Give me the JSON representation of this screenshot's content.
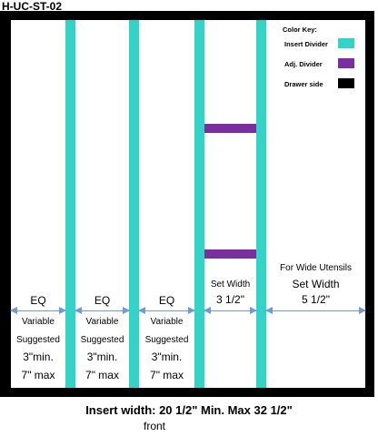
{
  "title": "H-UC-ST-02",
  "colors": {
    "insert_divider": "#33d3c8",
    "adj_divider": "#7a2f9e",
    "drawer_side": "#000000"
  },
  "color_key": {
    "heading": "Color Key:",
    "items": [
      {
        "label": "Insert Divider"
      },
      {
        "label": "Adj. Divider"
      },
      {
        "label": "Drawer side"
      }
    ]
  },
  "compartments": [
    {
      "eq": "EQ",
      "variable": "Variable",
      "suggested": "Suggested",
      "min": "3\"min.",
      "max": "7\" max"
    },
    {
      "eq": "EQ",
      "variable": "Variable",
      "suggested": "Suggested",
      "min": "3\"min.",
      "max": "7\" max"
    },
    {
      "eq": "EQ",
      "variable": "Variable",
      "suggested": "Suggested",
      "min": "3\"min.",
      "max": "7\" max"
    },
    {
      "set_label": "Set Width",
      "set_value": "3 1/2\""
    },
    {
      "note": "For Wide Utensils",
      "set_label": "Set Width",
      "set_value": "5 1/2\""
    }
  ],
  "caption": {
    "main": "Insert width: 20 1/2\" Min. Max 32 1/2\"",
    "sub": "front"
  }
}
